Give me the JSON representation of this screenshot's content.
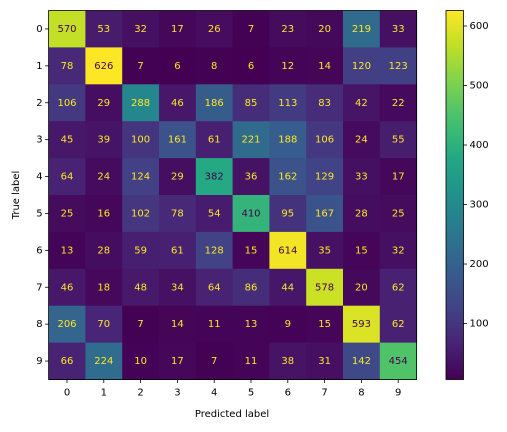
{
  "chart_data": {
    "type": "heatmap",
    "xlabel": "Predicted label",
    "ylabel": "True label",
    "x_categories": [
      "0",
      "1",
      "2",
      "3",
      "4",
      "5",
      "6",
      "7",
      "8",
      "9"
    ],
    "y_categories": [
      "0",
      "1",
      "2",
      "3",
      "4",
      "5",
      "6",
      "7",
      "8",
      "9"
    ],
    "values": [
      [
        570,
        53,
        32,
        17,
        26,
        7,
        23,
        20,
        219,
        33
      ],
      [
        78,
        626,
        7,
        6,
        8,
        6,
        12,
        14,
        120,
        123
      ],
      [
        106,
        29,
        288,
        46,
        186,
        85,
        113,
        83,
        42,
        22
      ],
      [
        45,
        39,
        100,
        161,
        61,
        221,
        188,
        106,
        24,
        55
      ],
      [
        64,
        24,
        124,
        29,
        382,
        36,
        162,
        129,
        33,
        17
      ],
      [
        25,
        16,
        102,
        78,
        54,
        410,
        95,
        167,
        28,
        25
      ],
      [
        13,
        28,
        59,
        61,
        128,
        15,
        614,
        35,
        15,
        32
      ],
      [
        46,
        18,
        48,
        34,
        64,
        86,
        44,
        578,
        20,
        62
      ],
      [
        206,
        70,
        7,
        14,
        11,
        13,
        9,
        15,
        593,
        62
      ],
      [
        66,
        224,
        10,
        17,
        7,
        11,
        38,
        31,
        142,
        454
      ]
    ],
    "colormap": "viridis",
    "clim": [
      6,
      626
    ],
    "cticks": [
      100,
      200,
      300,
      400,
      500,
      600
    ]
  }
}
